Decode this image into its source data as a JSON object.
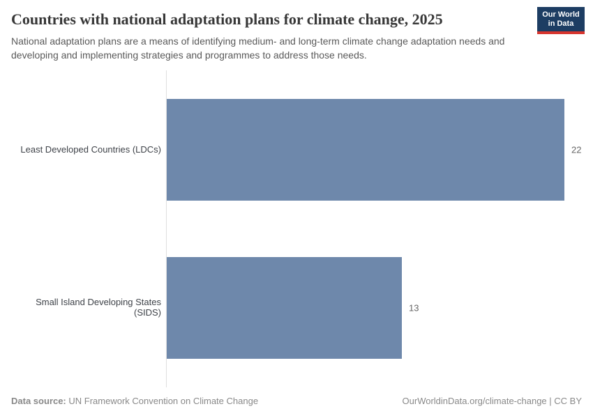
{
  "header": {
    "title": "Countries with national adaptation plans for climate change, 2025",
    "subtitle": "National adaptation plans are a means of identifying medium- and long-term climate change adaptation needs and developing and implementing strategies and programmes to address those needs.",
    "logo_line1": "Our World",
    "logo_line2": "in Data"
  },
  "chart_data": {
    "type": "bar",
    "orientation": "horizontal",
    "title": "Countries with national adaptation plans for climate change, 2025",
    "categories": [
      "Least Developed Countries (LDCs)",
      "Small Island Developing States (SIDS)"
    ],
    "values": [
      22,
      13
    ],
    "value_labels": [
      "22",
      "13"
    ],
    "xlim": [
      0,
      22
    ],
    "grid": false,
    "legend": "none",
    "bar_color": "#6e88ab"
  },
  "footer": {
    "source_label": "Data source:",
    "source_value": "UN Framework Convention on Climate Change",
    "attribution": "OurWorldinData.org/climate-change | CC BY"
  },
  "colors": {
    "bar": "#6e88ab",
    "axis_line": "#dfdfdf",
    "title_text": "#373737",
    "subtitle_text": "#595959",
    "category_label": "#3e4248",
    "value_label": "#666666",
    "footer_text": "#888888",
    "logo_bg": "#1d3d63",
    "logo_underline": "#d8352e"
  }
}
